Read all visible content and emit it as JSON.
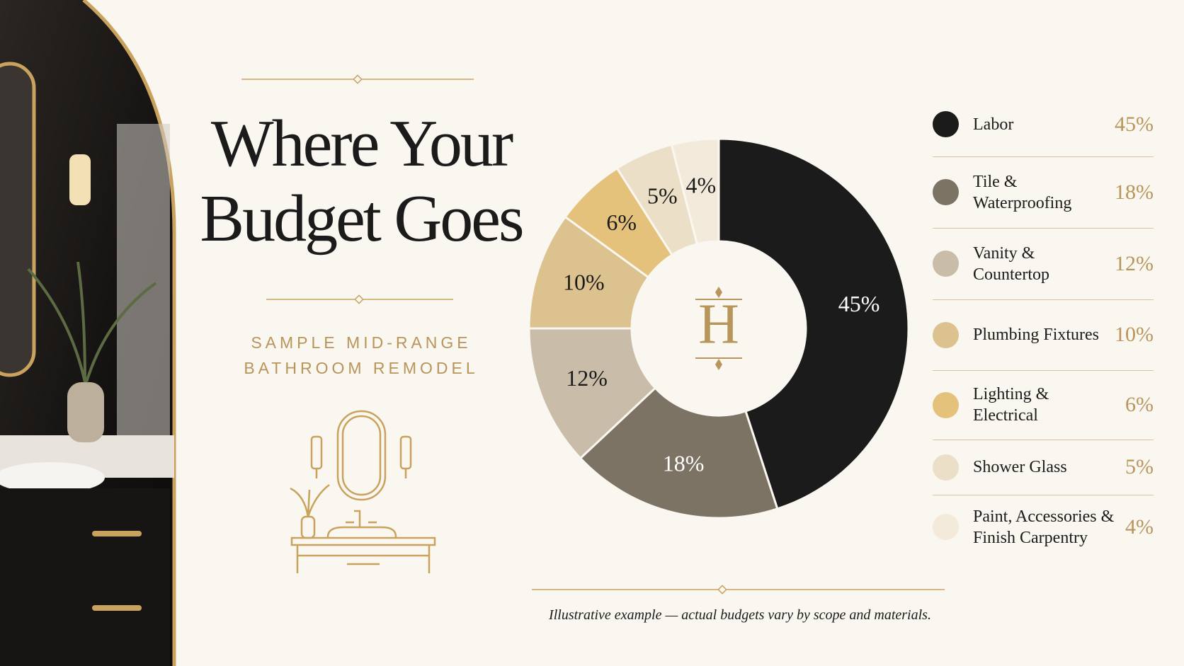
{
  "chart_data": {
    "type": "pie",
    "title": "Where Your Budget Goes",
    "subtitle": "SAMPLE MID-RANGE BATHROOM REMODEL",
    "center_label": "H",
    "categories": [
      "Labor",
      "Tile & Waterproofing",
      "Vanity & Countertop",
      "Plumbing Fixtures",
      "Lighting & Electrical",
      "Shower Glass",
      "Paint, Accessories & Finish Carpentry"
    ],
    "values": [
      45,
      18,
      12,
      10,
      6,
      5,
      4
    ],
    "value_labels": [
      "45%",
      "18%",
      "12%",
      "10%",
      "6%",
      "5%",
      "4%"
    ],
    "colors": [
      "#1c1b1b",
      "#7d7364",
      "#c9bca8",
      "#dcc28f",
      "#e5c27c",
      "#ebdfc7",
      "#f3eadb"
    ],
    "note": "Illustrative example — actual budgets vary by scope and materials."
  }
}
